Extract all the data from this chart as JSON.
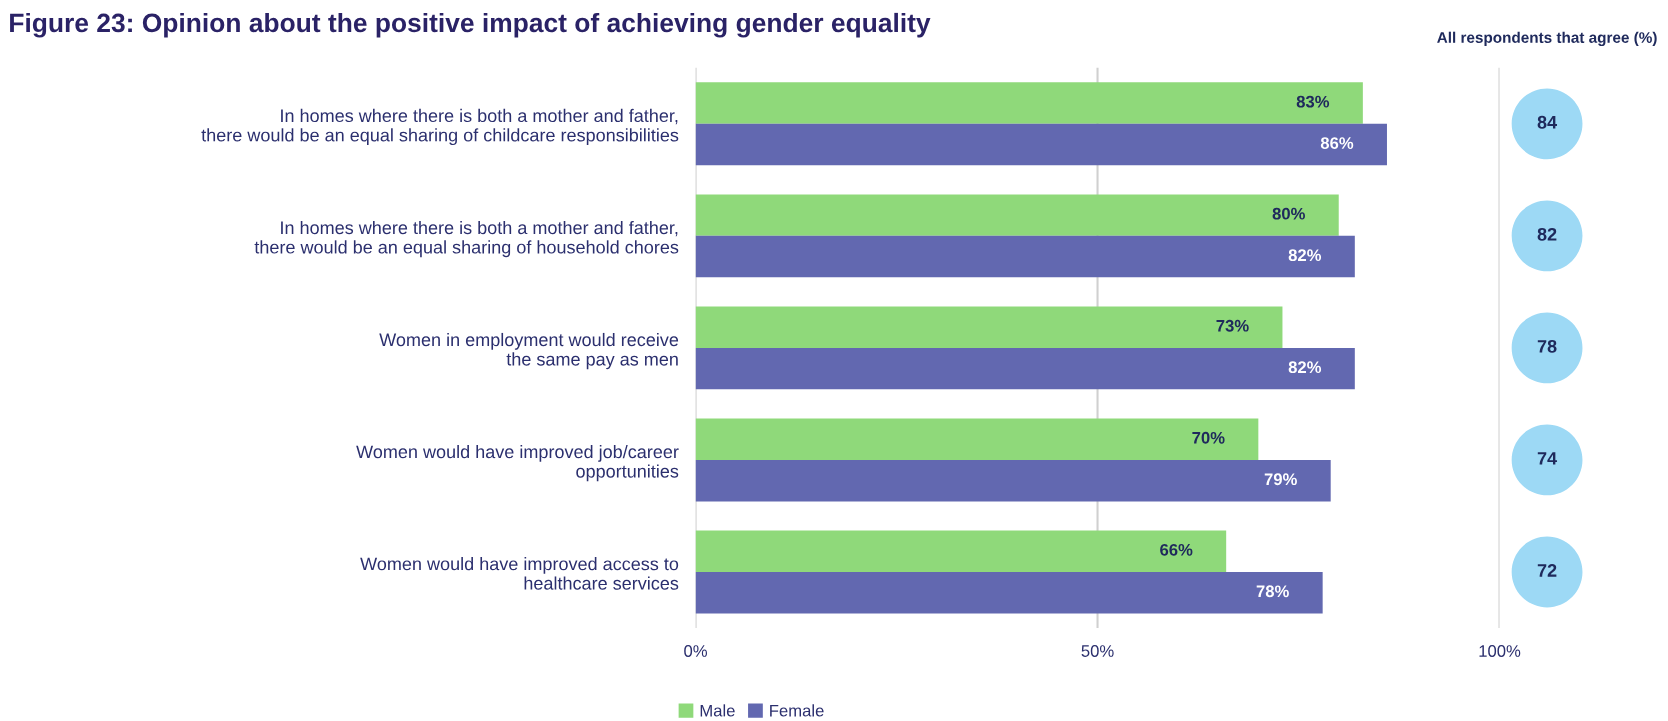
{
  "chart_data": [
    {
      "type": "bar",
      "orientation": "horizontal",
      "title": "Figure 23: Opinion about the positive impact of achieving gender equality",
      "categories": [
        "In homes where there is both a mother and father,\nthere would be an equal sharing of childcare responsibilities",
        "In homes where there is both a mother and father,\nthere would be an equal sharing of household chores",
        "Women in employment would receive\nthe same pay as men",
        "Women would have improved job/career\nopportunities",
        "Women would have improved access to\nhealthcare services"
      ],
      "series": [
        {
          "name": "Male",
          "color": "#8fd97a",
          "values": [
            83,
            80,
            73,
            70,
            66
          ],
          "value_labels": [
            "83%",
            "80%",
            "73%",
            "70%",
            "66%"
          ]
        },
        {
          "name": "Female",
          "color": "#6268b0",
          "values": [
            86,
            82,
            82,
            79,
            78
          ],
          "value_labels": [
            "86%",
            "82%",
            "82%",
            "79%",
            "78%"
          ]
        }
      ],
      "xlim": [
        0,
        100
      ],
      "xticks": [
        {
          "value": 0,
          "label": "0%"
        },
        {
          "value": 50,
          "label": "50%"
        },
        {
          "value": 100,
          "label": "100%"
        }
      ],
      "grid": "x",
      "legend": "bottom"
    },
    {
      "type": "other",
      "title": "All respondents that agree (%)",
      "categories": [
        null,
        null,
        null,
        null,
        null
      ],
      "values": [
        84,
        82,
        78,
        74,
        72
      ],
      "color": "#9dd9f5",
      "data_labels": true
    }
  ]
}
